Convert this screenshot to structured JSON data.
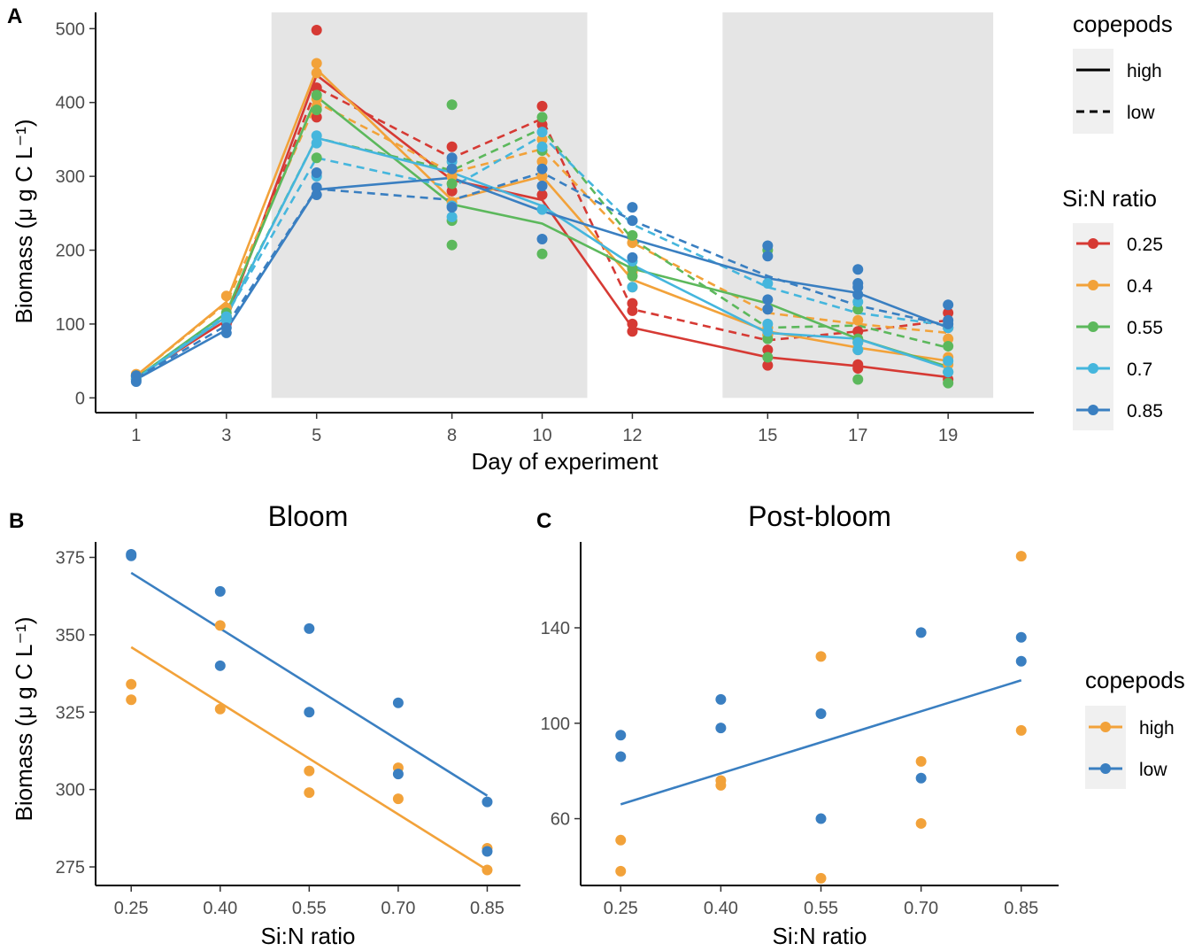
{
  "colors": {
    "0.25": "#d63a34",
    "0.4": "#f2a23a",
    "0.55": "#5cb85c",
    "0.7": "#45b6dd",
    "0.85": "#3a7fc1",
    "high": "#f2a23a",
    "low": "#3a7fc1",
    "phase_shading": "#e5e5e5",
    "legend_box": "#f0f0f0"
  },
  "legend_a": {
    "copepods_title": "copepods",
    "copepods_entries": [
      {
        "label": "high",
        "line": "solid"
      },
      {
        "label": "low",
        "line": "dashed"
      }
    ],
    "sin_title": "Si:N ratio",
    "sin_entries": [
      "0.25",
      "0.4",
      "0.55",
      "0.7",
      "0.85"
    ]
  },
  "legend_bc": {
    "title": "copepods",
    "entries": [
      "high",
      "low"
    ]
  },
  "chart_data": [
    {
      "panel": "A",
      "type": "line",
      "title": "",
      "xlabel": "Day of experiment",
      "ylabel": "Biomass (μ g C L⁻¹)",
      "xlim": [
        0.1,
        20.9
      ],
      "ylim": [
        -20,
        522
      ],
      "x_ticks": [
        1,
        3,
        5,
        8,
        10,
        12,
        15,
        17,
        19
      ],
      "y_ticks": [
        0,
        100,
        200,
        300,
        400,
        500
      ],
      "shaded_x_ranges": [
        [
          4,
          11
        ],
        [
          14,
          20
        ]
      ],
      "x": [
        1,
        3,
        5,
        8,
        10,
        12,
        15,
        17,
        19
      ],
      "series": [
        {
          "name": "0.25 high",
          "ratio": "0.25",
          "copepods": "high",
          "values": [
            28,
            105,
            437,
            295,
            268,
            95,
            55,
            43,
            28
          ]
        },
        {
          "name": "0.25 low",
          "ratio": "0.25",
          "copepods": "low",
          "values": [
            25,
            110,
            420,
            325,
            378,
            120,
            78,
            90,
            105
          ]
        },
        {
          "name": "0.4 high",
          "ratio": "0.4",
          "copepods": "high",
          "values": [
            30,
            130,
            445,
            268,
            300,
            160,
            90,
            68,
            50
          ]
        },
        {
          "name": "0.4 low",
          "ratio": "0.4",
          "copepods": "low",
          "values": [
            30,
            128,
            400,
            305,
            337,
            210,
            115,
            100,
            88
          ]
        },
        {
          "name": "0.55 high",
          "ratio": "0.55",
          "copepods": "high",
          "values": [
            27,
            115,
            408,
            262,
            236,
            175,
            128,
            80,
            42
          ]
        },
        {
          "name": "0.55 low",
          "ratio": "0.55",
          "copepods": "low",
          "values": [
            26,
            112,
            352,
            308,
            365,
            215,
            95,
            98,
            68
          ]
        },
        {
          "name": "0.7 high",
          "ratio": "0.7",
          "copepods": "high",
          "values": [
            26,
            110,
            352,
            305,
            260,
            180,
            88,
            80,
            40
          ]
        },
        {
          "name": "0.7 low",
          "ratio": "0.7",
          "copepods": "low",
          "values": [
            27,
            112,
            325,
            285,
            355,
            235,
            150,
            115,
            98
          ]
        },
        {
          "name": "0.85 high",
          "ratio": "0.85",
          "copepods": "high",
          "values": [
            25,
            92,
            282,
            298,
            253,
            215,
            162,
            142,
            95
          ]
        },
        {
          "name": "0.85 low",
          "ratio": "0.85",
          "copepods": "low",
          "values": [
            27,
            98,
            283,
            268,
            305,
            240,
            165,
            125,
            98
          ]
        }
      ],
      "points": {
        "0.25": [
          [
            1,
            25
          ],
          [
            1,
            30
          ],
          [
            3,
            100
          ],
          [
            3,
            110
          ],
          [
            5,
            498
          ],
          [
            5,
            380
          ],
          [
            5,
            420
          ],
          [
            8,
            340
          ],
          [
            8,
            310
          ],
          [
            8,
            280
          ],
          [
            10,
            395
          ],
          [
            10,
            370
          ],
          [
            10,
            275
          ],
          [
            12,
            90
          ],
          [
            12,
            100
          ],
          [
            12,
            128
          ],
          [
            12,
            118
          ],
          [
            15,
            44
          ],
          [
            15,
            65
          ],
          [
            15,
            85
          ],
          [
            17,
            40
          ],
          [
            17,
            45
          ],
          [
            17,
            90
          ],
          [
            19,
            25
          ],
          [
            19,
            115
          ],
          [
            19,
            95
          ]
        ],
        "0.4": [
          [
            1,
            28
          ],
          [
            1,
            32
          ],
          [
            3,
            138
          ],
          [
            3,
            122
          ],
          [
            5,
            453
          ],
          [
            5,
            440
          ],
          [
            5,
            405
          ],
          [
            5,
            395
          ],
          [
            8,
            300
          ],
          [
            8,
            265
          ],
          [
            10,
            300
          ],
          [
            10,
            320
          ],
          [
            10,
            350
          ],
          [
            12,
            150
          ],
          [
            12,
            170
          ],
          [
            12,
            210
          ],
          [
            15,
            85
          ],
          [
            15,
            95
          ],
          [
            15,
            120
          ],
          [
            17,
            65
          ],
          [
            17,
            75
          ],
          [
            17,
            105
          ],
          [
            19,
            45
          ],
          [
            19,
            55
          ],
          [
            19,
            80
          ]
        ],
        "0.55": [
          [
            1,
            26
          ],
          [
            1,
            30
          ],
          [
            3,
            115
          ],
          [
            3,
            110
          ],
          [
            5,
            410
          ],
          [
            5,
            390
          ],
          [
            5,
            325
          ],
          [
            8,
            397
          ],
          [
            8,
            207
          ],
          [
            8,
            240
          ],
          [
            8,
            290
          ],
          [
            10,
            195
          ],
          [
            10,
            380
          ],
          [
            10,
            335
          ],
          [
            12,
            175
          ],
          [
            12,
            165
          ],
          [
            12,
            220
          ],
          [
            15,
            55
          ],
          [
            15,
            80
          ],
          [
            15,
            200
          ],
          [
            17,
            25
          ],
          [
            17,
            80
          ],
          [
            17,
            120
          ],
          [
            19,
            20
          ],
          [
            19,
            35
          ],
          [
            19,
            70
          ]
        ],
        "0.7": [
          [
            1,
            25
          ],
          [
            1,
            28
          ],
          [
            3,
            110
          ],
          [
            3,
            105
          ],
          [
            5,
            355
          ],
          [
            5,
            345
          ],
          [
            5,
            300
          ],
          [
            8,
            245
          ],
          [
            8,
            260
          ],
          [
            8,
            320
          ],
          [
            10,
            255
          ],
          [
            10,
            360
          ],
          [
            10,
            340
          ],
          [
            12,
            150
          ],
          [
            12,
            185
          ],
          [
            12,
            240
          ],
          [
            15,
            90
          ],
          [
            15,
            100
          ],
          [
            15,
            155
          ],
          [
            17,
            65
          ],
          [
            17,
            75
          ],
          [
            17,
            130
          ],
          [
            19,
            35
          ],
          [
            19,
            50
          ],
          [
            19,
            95
          ]
        ],
        "0.85": [
          [
            1,
            22
          ],
          [
            1,
            30
          ],
          [
            3,
            88
          ],
          [
            3,
            95
          ],
          [
            5,
            275
          ],
          [
            5,
            285
          ],
          [
            5,
            305
          ],
          [
            8,
            258
          ],
          [
            8,
            325
          ],
          [
            8,
            310
          ],
          [
            10,
            215
          ],
          [
            10,
            287
          ],
          [
            10,
            310
          ],
          [
            12,
            190
          ],
          [
            12,
            240
          ],
          [
            12,
            258
          ],
          [
            15,
            120
          ],
          [
            15,
            133
          ],
          [
            15,
            192
          ],
          [
            15,
            206
          ],
          [
            17,
            140
          ],
          [
            17,
            150
          ],
          [
            17,
            155
          ],
          [
            17,
            174
          ],
          [
            19,
            100
          ],
          [
            19,
            105
          ],
          [
            19,
            126
          ]
        ]
      }
    },
    {
      "panel": "B",
      "type": "scatter",
      "title": "Bloom",
      "xlabel": "Si:N ratio",
      "ylabel": "Biomass (μ g C L⁻¹)",
      "xlim": [
        0.19,
        0.906
      ],
      "ylim": [
        269,
        380
      ],
      "x_ticks": [
        0.25,
        0.4,
        0.55,
        0.7,
        0.85
      ],
      "x_tick_labels": [
        "0.25",
        "0.40",
        "0.55",
        "0.70",
        "0.85"
      ],
      "y_ticks": [
        275,
        300,
        325,
        350,
        375
      ],
      "series": [
        {
          "name": "high",
          "points": [
            [
              0.25,
              334
            ],
            [
              0.25,
              329
            ],
            [
              0.4,
              353
            ],
            [
              0.4,
              326
            ],
            [
              0.55,
              306
            ],
            [
              0.55,
              299
            ],
            [
              0.7,
              307
            ],
            [
              0.7,
              297
            ],
            [
              0.85,
              281
            ],
            [
              0.85,
              274
            ]
          ],
          "fit": [
            [
              0.25,
              346
            ],
            [
              0.85,
              274
            ]
          ]
        },
        {
          "name": "low",
          "points": [
            [
              0.25,
              376
            ],
            [
              0.25,
              375.5
            ],
            [
              0.4,
              364
            ],
            [
              0.4,
              340
            ],
            [
              0.55,
              352
            ],
            [
              0.55,
              325
            ],
            [
              0.7,
              328
            ],
            [
              0.7,
              305
            ],
            [
              0.85,
              296
            ],
            [
              0.85,
              280
            ]
          ],
          "fit": [
            [
              0.25,
              370
            ],
            [
              0.85,
              298
            ]
          ]
        }
      ]
    },
    {
      "panel": "C",
      "type": "scatter",
      "title": "Post-bloom",
      "xlabel": "Si:N ratio",
      "ylabel": "",
      "xlim": [
        0.19,
        0.906
      ],
      "ylim": [
        32,
        176
      ],
      "x_ticks": [
        0.25,
        0.4,
        0.55,
        0.7,
        0.85
      ],
      "x_tick_labels": [
        "0.25",
        "0.40",
        "0.55",
        "0.70",
        "0.85"
      ],
      "y_ticks": [
        60,
        100,
        140
      ],
      "series": [
        {
          "name": "high",
          "points": [
            [
              0.25,
              51
            ],
            [
              0.25,
              38
            ],
            [
              0.4,
              76
            ],
            [
              0.4,
              74
            ],
            [
              0.55,
              128
            ],
            [
              0.55,
              35
            ],
            [
              0.7,
              84
            ],
            [
              0.7,
              58
            ],
            [
              0.85,
              170
            ],
            [
              0.85,
              97
            ]
          ],
          "fit": null
        },
        {
          "name": "low",
          "points": [
            [
              0.25,
              95
            ],
            [
              0.25,
              86
            ],
            [
              0.4,
              110
            ],
            [
              0.4,
              98
            ],
            [
              0.55,
              104
            ],
            [
              0.55,
              60
            ],
            [
              0.7,
              138
            ],
            [
              0.7,
              77
            ],
            [
              0.85,
              136
            ],
            [
              0.85,
              126
            ]
          ],
          "fit": [
            [
              0.25,
              66
            ],
            [
              0.85,
              118
            ]
          ]
        }
      ]
    }
  ]
}
